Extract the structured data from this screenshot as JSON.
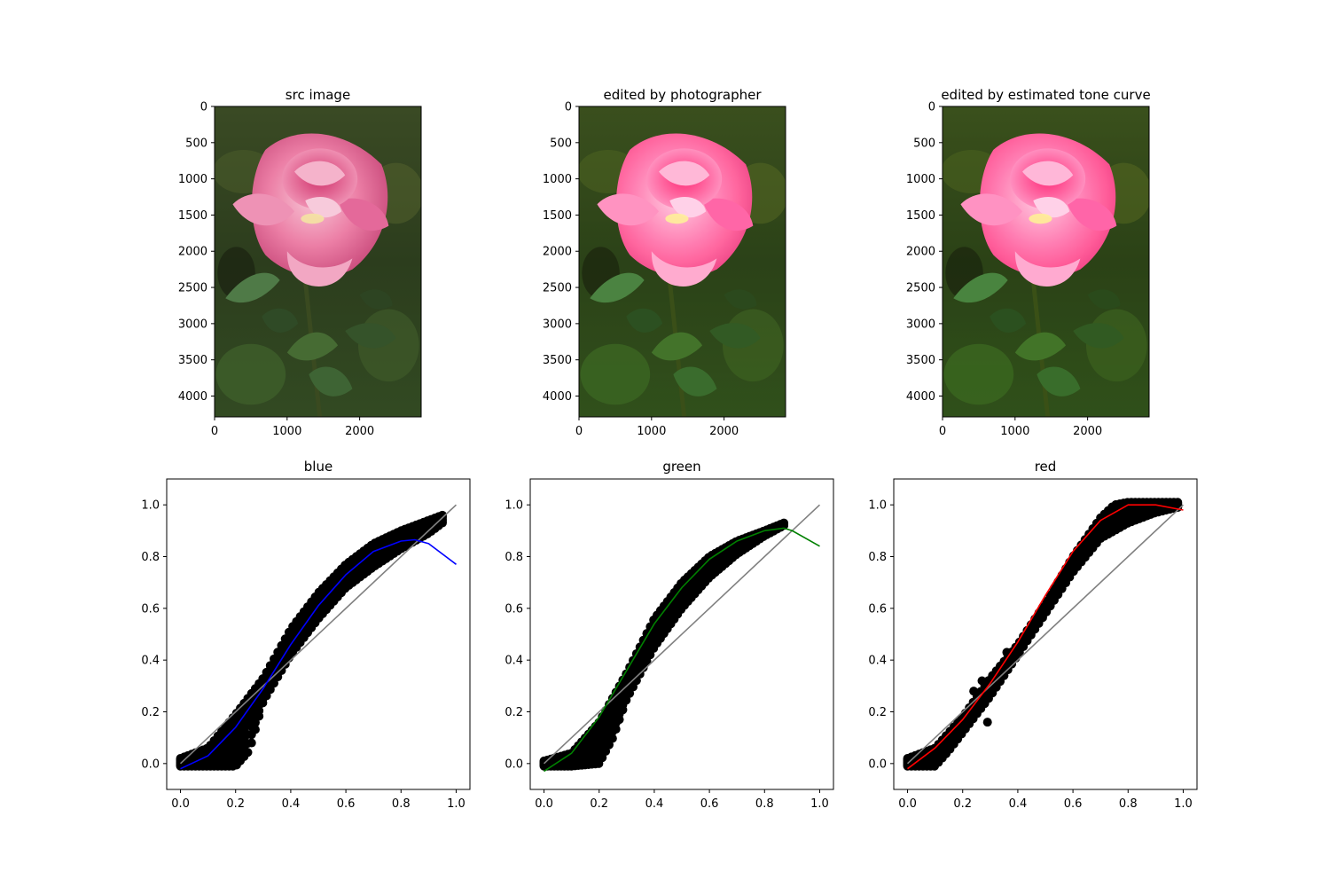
{
  "images": [
    {
      "title": "src image",
      "xticks": [
        "0",
        "1000",
        "2000"
      ],
      "yticks": [
        "0",
        "500",
        "1000",
        "1500",
        "2000",
        "2500",
        "3000",
        "3500",
        "4000"
      ],
      "adjust": {
        "brightness": 1.0,
        "saturation": 1.0
      }
    },
    {
      "title": "edited by photographer",
      "xticks": [
        "0",
        "1000",
        "2000"
      ],
      "yticks": [
        "0",
        "500",
        "1000",
        "1500",
        "2000",
        "2500",
        "3000",
        "3500",
        "4000"
      ],
      "adjust": {
        "brightness": 1.05,
        "saturation": 1.25
      }
    },
    {
      "title": "edited by estimated tone curve",
      "xticks": [
        "0",
        "1000",
        "2000"
      ],
      "yticks": [
        "0",
        "500",
        "1000",
        "1500",
        "2000",
        "2500",
        "3000",
        "3500",
        "4000"
      ],
      "adjust": {
        "brightness": 1.05,
        "saturation": 1.3
      }
    }
  ],
  "image_extent": {
    "width": 2848,
    "height": 4288
  },
  "chart_data": [
    {
      "type": "scatter",
      "title": "blue",
      "xlabel": "",
      "ylabel": "",
      "xlim": [
        -0.05,
        1.05
      ],
      "ylim": [
        -0.1,
        1.1
      ],
      "xticks": [
        "0.0",
        "0.2",
        "0.4",
        "0.6",
        "0.8",
        "1.0"
      ],
      "yticks": [
        "0.0",
        "0.2",
        "0.4",
        "0.6",
        "0.8",
        "1.0"
      ],
      "grid": false,
      "curve_color": "#0000ff",
      "upper": {
        "x": [
          0.0,
          0.1,
          0.2,
          0.3,
          0.4,
          0.5,
          0.6,
          0.7,
          0.8,
          0.9,
          0.95
        ],
        "y": [
          0.02,
          0.06,
          0.19,
          0.33,
          0.52,
          0.66,
          0.77,
          0.85,
          0.9,
          0.94,
          0.96
        ]
      },
      "lower": {
        "x": [
          0.0,
          0.1,
          0.2,
          0.25,
          0.3,
          0.4,
          0.5,
          0.6,
          0.7,
          0.8,
          0.9,
          0.95
        ],
        "y": [
          -0.01,
          -0.01,
          -0.01,
          0.05,
          0.24,
          0.42,
          0.56,
          0.68,
          0.76,
          0.83,
          0.89,
          0.93
        ]
      },
      "curve": {
        "x": [
          0.0,
          0.1,
          0.2,
          0.3,
          0.4,
          0.5,
          0.6,
          0.7,
          0.8,
          0.85,
          0.9,
          1.0
        ],
        "y": [
          -0.02,
          0.03,
          0.14,
          0.29,
          0.46,
          0.61,
          0.73,
          0.82,
          0.86,
          0.865,
          0.85,
          0.77
        ]
      },
      "identity": {
        "x": [
          0,
          1
        ],
        "y": [
          0,
          1
        ],
        "color": "#808080"
      }
    },
    {
      "type": "scatter",
      "title": "green",
      "xlabel": "",
      "ylabel": "",
      "xlim": [
        -0.05,
        1.05
      ],
      "ylim": [
        -0.1,
        1.1
      ],
      "xticks": [
        "0.0",
        "0.2",
        "0.4",
        "0.6",
        "0.8",
        "1.0"
      ],
      "yticks": [
        "0.0",
        "0.2",
        "0.4",
        "0.6",
        "0.8",
        "1.0"
      ],
      "grid": false,
      "curve_color": "#008000",
      "upper": {
        "x": [
          0.0,
          0.1,
          0.2,
          0.3,
          0.4,
          0.5,
          0.6,
          0.7,
          0.8,
          0.87
        ],
        "y": [
          0.01,
          0.04,
          0.16,
          0.35,
          0.56,
          0.7,
          0.8,
          0.86,
          0.9,
          0.93
        ]
      },
      "lower": {
        "x": [
          0.0,
          0.1,
          0.2,
          0.25,
          0.3,
          0.4,
          0.5,
          0.6,
          0.7,
          0.8,
          0.87
        ],
        "y": [
          -0.01,
          -0.01,
          0.0,
          0.1,
          0.25,
          0.45,
          0.6,
          0.72,
          0.81,
          0.88,
          0.92
        ]
      },
      "curve": {
        "x": [
          0.0,
          0.1,
          0.2,
          0.3,
          0.4,
          0.5,
          0.6,
          0.7,
          0.8,
          0.87,
          0.9,
          1.0
        ],
        "y": [
          -0.03,
          0.04,
          0.18,
          0.36,
          0.54,
          0.68,
          0.79,
          0.86,
          0.9,
          0.91,
          0.9,
          0.84
        ]
      },
      "identity": {
        "x": [
          0,
          1
        ],
        "y": [
          0,
          1
        ],
        "color": "#808080"
      }
    },
    {
      "type": "scatter",
      "title": "red",
      "xlabel": "",
      "ylabel": "",
      "xlim": [
        -0.05,
        1.05
      ],
      "ylim": [
        -0.1,
        1.1
      ],
      "xticks": [
        "0.0",
        "0.2",
        "0.4",
        "0.6",
        "0.8",
        "1.0"
      ],
      "yticks": [
        "0.0",
        "0.2",
        "0.4",
        "0.6",
        "0.8",
        "1.0"
      ],
      "grid": false,
      "curve_color": "#ff0000",
      "upper": {
        "x": [
          0.0,
          0.1,
          0.2,
          0.3,
          0.4,
          0.5,
          0.6,
          0.7,
          0.75,
          0.8,
          0.9,
          0.98
        ],
        "y": [
          0.02,
          0.06,
          0.18,
          0.33,
          0.46,
          0.62,
          0.8,
          0.95,
          1.0,
          1.01,
          1.01,
          1.01
        ]
      },
      "lower": {
        "x": [
          0.0,
          0.1,
          0.15,
          0.2,
          0.3,
          0.4,
          0.5,
          0.6,
          0.7,
          0.8,
          0.9,
          0.98
        ],
        "y": [
          -0.01,
          -0.01,
          0.05,
          0.12,
          0.26,
          0.42,
          0.58,
          0.74,
          0.87,
          0.93,
          0.97,
          0.99
        ]
      },
      "outliers": {
        "x": [
          0.24,
          0.29,
          0.36,
          0.27
        ],
        "y": [
          0.28,
          0.16,
          0.43,
          0.32
        ]
      },
      "curve": {
        "x": [
          0.0,
          0.1,
          0.2,
          0.3,
          0.4,
          0.5,
          0.6,
          0.7,
          0.8,
          0.9,
          1.0
        ],
        "y": [
          -0.02,
          0.06,
          0.17,
          0.31,
          0.47,
          0.65,
          0.82,
          0.94,
          1.0,
          1.0,
          0.98
        ]
      },
      "identity": {
        "x": [
          0,
          1
        ],
        "y": [
          0,
          1
        ],
        "color": "#808080"
      }
    }
  ]
}
